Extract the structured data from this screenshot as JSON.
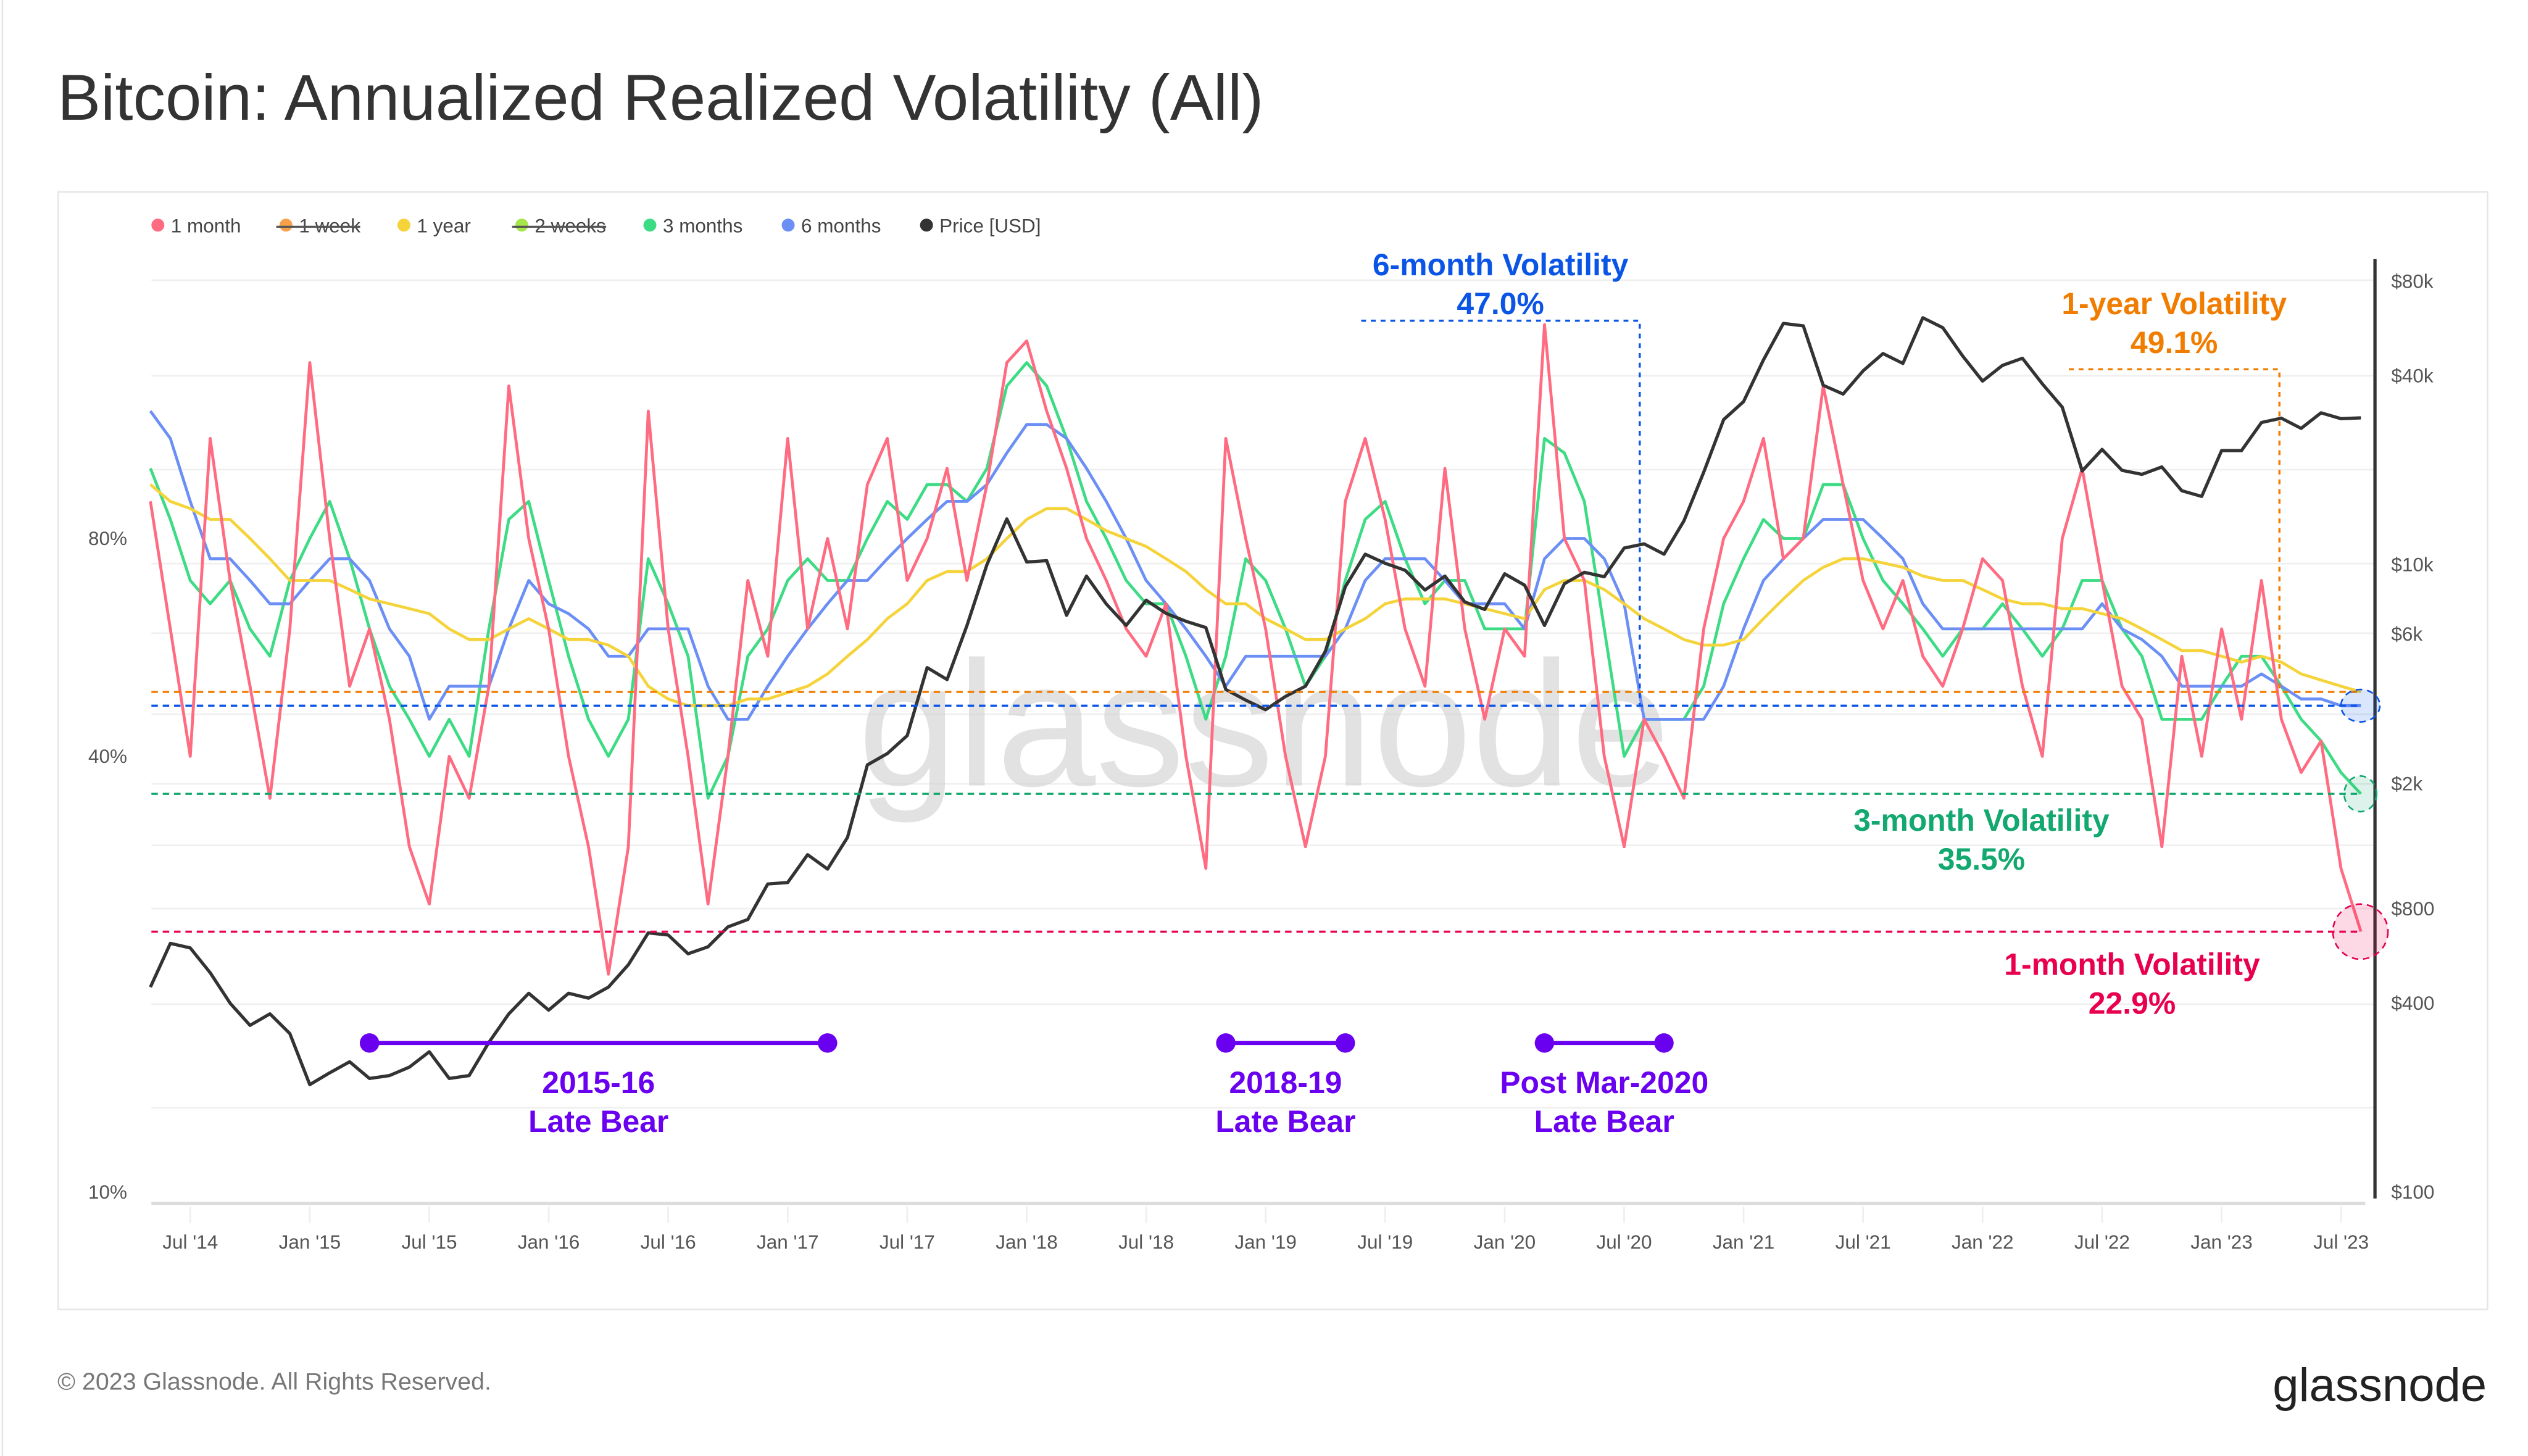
{
  "title": "Bitcoin: Annualized Realized Volatility (All)",
  "footer": {
    "copyright": "© 2023 Glassnode. All Rights Reserved.",
    "logo": "glassnode"
  },
  "watermark": "glassnode",
  "legend": [
    {
      "label": "1 month",
      "color": "#ff6b81",
      "hidden": false
    },
    {
      "label": "1 week",
      "color": "#f7a04a",
      "hidden": true
    },
    {
      "label": "1 year",
      "color": "#f5d33a",
      "hidden": false
    },
    {
      "label": "2 weeks",
      "color": "#a6e64a",
      "hidden": true
    },
    {
      "label": "3 months",
      "color": "#3ddc84",
      "hidden": false
    },
    {
      "label": "6 months",
      "color": "#6b8ff5",
      "hidden": false
    },
    {
      "label": "Price [USD]",
      "color": "#333333",
      "hidden": false
    }
  ],
  "annotations": {
    "six_month": {
      "title": "6-month Volatility",
      "value": "47.0%",
      "color": "#0a55e6",
      "level": 47.0
    },
    "one_year": {
      "title": "1-year Volatility",
      "value": "49.1%",
      "color": "#f07d00",
      "level": 49.1
    },
    "three_month": {
      "title": "3-month Volatility",
      "value": "35.5%",
      "color": "#12a86f",
      "level": 35.5
    },
    "one_month": {
      "title": "1-month Volatility",
      "value": "22.9%",
      "color": "#e8004f",
      "level": 22.9
    },
    "bear_color": "#6a00f0",
    "bears": [
      {
        "line1": "2015-16",
        "line2": "Late Bear",
        "from": "2015-04",
        "to": "2017-03"
      },
      {
        "line1": "2018-19",
        "line2": "Late Bear",
        "from": "2018-11",
        "to": "2019-05"
      },
      {
        "line1": "Post Mar-2020",
        "line2": "Late Bear",
        "from": "2020-03",
        "to": "2020-09"
      }
    ]
  },
  "chart_data": {
    "type": "line",
    "title": "Bitcoin: Annualized Realized Volatility (All)",
    "left_axis": {
      "scale": "log",
      "ticks": [
        "10%",
        "40%",
        "80%"
      ],
      "tick_values": [
        10,
        40,
        80
      ]
    },
    "right_axis": {
      "scale": "log",
      "ticks": [
        "$100",
        "$400",
        "$800",
        "$2k",
        "$6k",
        "$10k",
        "$40k",
        "$80k"
      ],
      "tick_values": [
        100,
        400,
        800,
        2000,
        6000,
        10000,
        40000,
        80000
      ]
    },
    "x_ticks": [
      "Jul '14",
      "Jan '15",
      "Jul '15",
      "Jan '16",
      "Jul '16",
      "Jan '17",
      "Jul '17",
      "Jan '18",
      "Jul '18",
      "Jan '19",
      "Jul '19",
      "Jan '20",
      "Jul '20",
      "Jan '21",
      "Jul '21",
      "Jan '22",
      "Jul '22",
      "Jan '23",
      "Jul '23"
    ],
    "grid": true,
    "legend_position": "top-left",
    "dates": [
      "2014-05",
      "2014-06",
      "2014-07",
      "2014-08",
      "2014-09",
      "2014-10",
      "2014-11",
      "2014-12",
      "2015-01",
      "2015-02",
      "2015-03",
      "2015-04",
      "2015-05",
      "2015-06",
      "2015-07",
      "2015-08",
      "2015-09",
      "2015-10",
      "2015-11",
      "2015-12",
      "2016-01",
      "2016-02",
      "2016-03",
      "2016-04",
      "2016-05",
      "2016-06",
      "2016-07",
      "2016-08",
      "2016-09",
      "2016-10",
      "2016-11",
      "2016-12",
      "2017-01",
      "2017-02",
      "2017-03",
      "2017-04",
      "2017-05",
      "2017-06",
      "2017-07",
      "2017-08",
      "2017-09",
      "2017-10",
      "2017-11",
      "2017-12",
      "2018-01",
      "2018-02",
      "2018-03",
      "2018-04",
      "2018-05",
      "2018-06",
      "2018-07",
      "2018-08",
      "2018-09",
      "2018-10",
      "2018-11",
      "2018-12",
      "2019-01",
      "2019-02",
      "2019-03",
      "2019-04",
      "2019-05",
      "2019-06",
      "2019-07",
      "2019-08",
      "2019-09",
      "2019-10",
      "2019-11",
      "2019-12",
      "2020-01",
      "2020-02",
      "2020-03",
      "2020-04",
      "2020-05",
      "2020-06",
      "2020-07",
      "2020-08",
      "2020-09",
      "2020-10",
      "2020-11",
      "2020-12",
      "2021-01",
      "2021-02",
      "2021-03",
      "2021-04",
      "2021-05",
      "2021-06",
      "2021-07",
      "2021-08",
      "2021-09",
      "2021-10",
      "2021-11",
      "2021-12",
      "2022-01",
      "2022-02",
      "2022-03",
      "2022-04",
      "2022-05",
      "2022-06",
      "2022-07",
      "2022-08",
      "2022-09",
      "2022-10",
      "2022-11",
      "2022-12",
      "2023-01",
      "2023-02",
      "2023-03",
      "2023-04",
      "2023-05",
      "2023-06",
      "2023-07",
      "2023-08"
    ],
    "series": [
      {
        "name": "1 month",
        "axis": "left",
        "color": "#ff6b81",
        "values": [
          90,
          60,
          40,
          110,
          70,
          50,
          35,
          60,
          140,
          80,
          50,
          60,
          45,
          30,
          25,
          40,
          35,
          50,
          130,
          80,
          60,
          40,
          30,
          20,
          30,
          120,
          60,
          40,
          25,
          40,
          70,
          55,
          110,
          60,
          80,
          60,
          95,
          110,
          70,
          80,
          100,
          70,
          95,
          140,
          150,
          120,
          100,
          80,
          70,
          60,
          55,
          65,
          40,
          28,
          110,
          80,
          60,
          40,
          30,
          40,
          90,
          110,
          85,
          60,
          50,
          100,
          60,
          45,
          60,
          55,
          158,
          80,
          70,
          40,
          30,
          45,
          40,
          35,
          60,
          80,
          90,
          110,
          75,
          80,
          130,
          95,
          70,
          60,
          70,
          55,
          50,
          60,
          75,
          70,
          50,
          40,
          80,
          100,
          70,
          50,
          45,
          30,
          55,
          40,
          60,
          45,
          70,
          45,
          38,
          42,
          28,
          22.9
        ]
      },
      {
        "name": "1 year",
        "axis": "left",
        "color": "#f5d33a",
        "values": [
          95,
          90,
          88,
          85,
          85,
          80,
          75,
          70,
          70,
          70,
          68,
          66,
          65,
          64,
          63,
          60,
          58,
          58,
          60,
          62,
          60,
          58,
          58,
          57,
          55,
          50,
          48,
          47,
          47,
          47,
          48,
          48,
          49,
          50,
          52,
          55,
          58,
          62,
          65,
          70,
          72,
          72,
          75,
          80,
          85,
          88,
          88,
          85,
          82,
          80,
          78,
          75,
          72,
          68,
          65,
          65,
          62,
          60,
          58,
          58,
          60,
          62,
          65,
          66,
          66,
          66,
          65,
          64,
          63,
          62,
          68,
          70,
          70,
          68,
          65,
          62,
          60,
          58,
          57,
          57,
          58,
          62,
          66,
          70,
          73,
          75,
          75,
          74,
          73,
          71,
          70,
          70,
          68,
          66,
          65,
          65,
          64,
          64,
          63,
          62,
          60,
          58,
          56,
          56,
          55,
          54,
          55,
          54,
          52,
          51,
          50,
          49.1
        ]
      },
      {
        "name": "3 months",
        "axis": "left",
        "color": "#3ddc84",
        "values": [
          100,
          85,
          70,
          65,
          70,
          60,
          55,
          70,
          80,
          90,
          75,
          60,
          50,
          45,
          40,
          45,
          40,
          60,
          85,
          90,
          70,
          55,
          45,
          40,
          45,
          75,
          65,
          55,
          35,
          40,
          55,
          60,
          70,
          75,
          70,
          70,
          80,
          90,
          85,
          95,
          95,
          90,
          100,
          130,
          140,
          130,
          110,
          90,
          80,
          70,
          65,
          65,
          55,
          45,
          55,
          75,
          70,
          60,
          50,
          55,
          70,
          85,
          90,
          75,
          65,
          70,
          70,
          60,
          60,
          60,
          110,
          105,
          90,
          60,
          40,
          45,
          45,
          45,
          50,
          65,
          75,
          85,
          80,
          80,
          95,
          95,
          80,
          70,
          65,
          60,
          55,
          60,
          60,
          65,
          60,
          55,
          60,
          70,
          70,
          60,
          55,
          45,
          45,
          45,
          50,
          55,
          55,
          50,
          45,
          42,
          38,
          35.5
        ]
      },
      {
        "name": "6 months",
        "axis": "left",
        "color": "#6b8ff5",
        "values": [
          120,
          110,
          90,
          75,
          75,
          70,
          65,
          65,
          70,
          75,
          75,
          70,
          60,
          55,
          45,
          50,
          50,
          50,
          60,
          70,
          65,
          63,
          60,
          55,
          55,
          60,
          60,
          60,
          50,
          45,
          45,
          50,
          55,
          60,
          65,
          70,
          70,
          75,
          80,
          85,
          90,
          90,
          95,
          105,
          115,
          115,
          110,
          100,
          90,
          80,
          70,
          65,
          60,
          55,
          50,
          55,
          55,
          55,
          55,
          55,
          60,
          70,
          75,
          75,
          75,
          70,
          65,
          65,
          65,
          60,
          75,
          80,
          80,
          75,
          65,
          45,
          45,
          45,
          45,
          50,
          60,
          70,
          75,
          80,
          85,
          85,
          85,
          80,
          75,
          65,
          60,
          60,
          60,
          60,
          60,
          60,
          60,
          60,
          65,
          60,
          58,
          55,
          50,
          50,
          50,
          50,
          52,
          50,
          48,
          48,
          47,
          47.0
        ]
      },
      {
        "name": "Price [USD]",
        "axis": "right",
        "color": "#333333",
        "values": [
          450,
          620,
          600,
          500,
          400,
          340,
          370,
          320,
          220,
          240,
          260,
          230,
          235,
          250,
          280,
          230,
          235,
          300,
          370,
          430,
          380,
          430,
          415,
          450,
          530,
          670,
          660,
          575,
          605,
          700,
          740,
          960,
          970,
          1190,
          1070,
          1350,
          2300,
          2500,
          2850,
          4700,
          4300,
          6400,
          10000,
          14000,
          10200,
          10300,
          6900,
          9200,
          7500,
          6400,
          7700,
          7000,
          6600,
          6300,
          4000,
          3700,
          3450,
          3800,
          4100,
          5300,
          8500,
          10800,
          10100,
          9600,
          8300,
          9200,
          7600,
          7200,
          9350,
          8600,
          6400,
          8700,
          9450,
          9150,
          11300,
          11650,
          10800,
          13800,
          19700,
          29000,
          33100,
          45000,
          58800,
          57700,
          37300,
          35000,
          41500,
          47100,
          43800,
          61300,
          57000,
          46300,
          38500,
          43200,
          45500,
          37700,
          31800,
          19900,
          23300,
          20000,
          19400,
          20500,
          17200,
          16500,
          23100,
          23100,
          28400,
          29300,
          27200,
          30500,
          29200,
          29400
        ]
      }
    ]
  }
}
